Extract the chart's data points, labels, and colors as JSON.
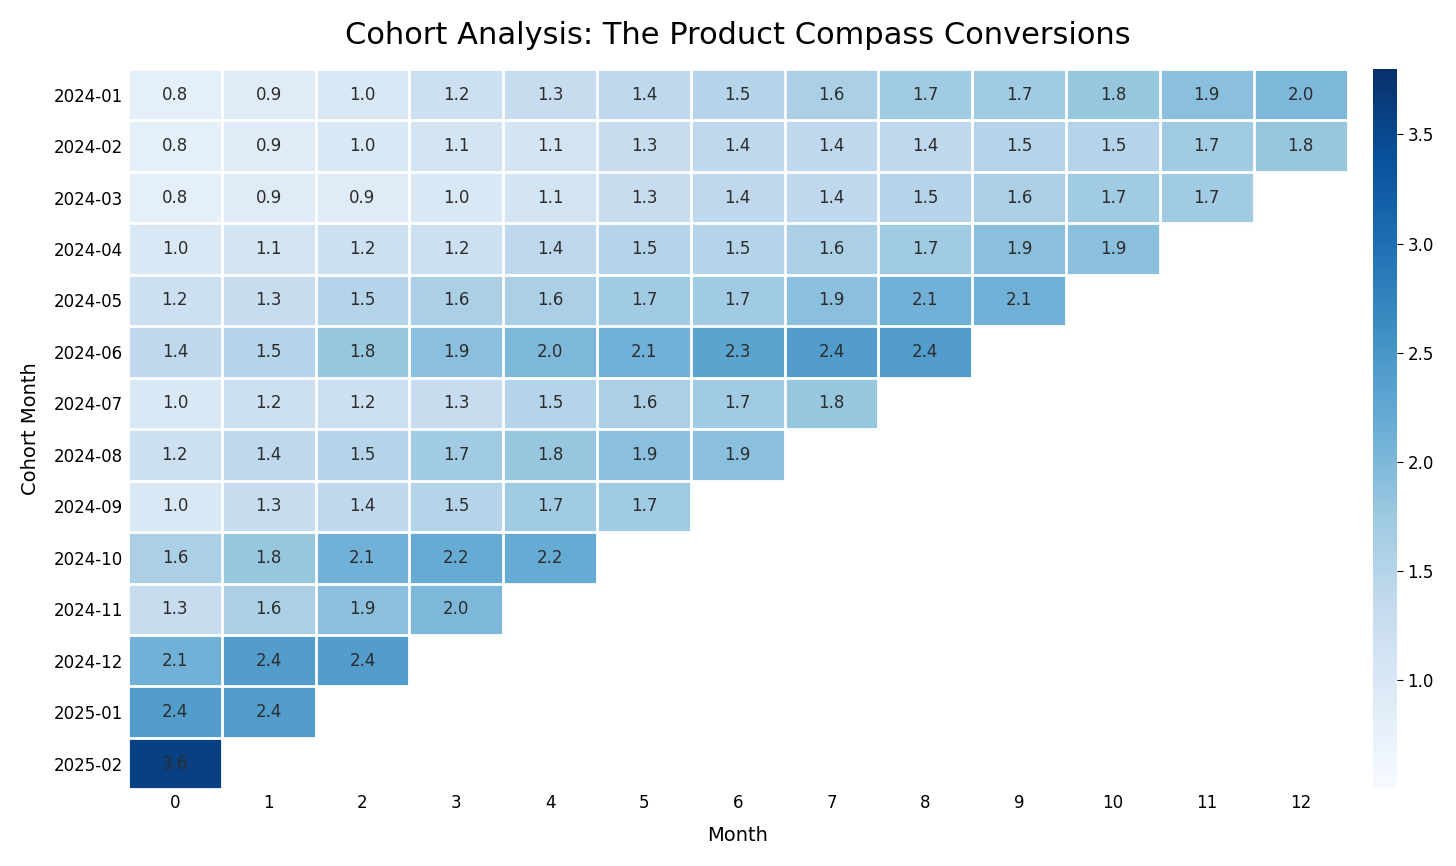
{
  "title": "Cohort Analysis: The Product Compass Conversions",
  "xlabel": "Month",
  "ylabel": "Cohort Month",
  "cohort_labels": [
    "2024-01",
    "2024-02",
    "2024-03",
    "2024-04",
    "2024-05",
    "2024-06",
    "2024-07",
    "2024-08",
    "2024-09",
    "2024-10",
    "2024-11",
    "2024-12",
    "2025-01",
    "2025-02"
  ],
  "month_labels": [
    "0",
    "1",
    "2",
    "3",
    "4",
    "5",
    "6",
    "7",
    "8",
    "9",
    "10",
    "11",
    "12"
  ],
  "data": [
    [
      0.8,
      0.9,
      1.0,
      1.2,
      1.3,
      1.4,
      1.5,
      1.6,
      1.7,
      1.7,
      1.8,
      1.9,
      2.0
    ],
    [
      0.8,
      0.9,
      1.0,
      1.1,
      1.1,
      1.3,
      1.4,
      1.4,
      1.4,
      1.5,
      1.5,
      1.7,
      1.8
    ],
    [
      0.8,
      0.9,
      0.9,
      1.0,
      1.1,
      1.3,
      1.4,
      1.4,
      1.5,
      1.6,
      1.7,
      1.7,
      null
    ],
    [
      1.0,
      1.1,
      1.2,
      1.2,
      1.4,
      1.5,
      1.5,
      1.6,
      1.7,
      1.9,
      1.9,
      null,
      null
    ],
    [
      1.2,
      1.3,
      1.5,
      1.6,
      1.6,
      1.7,
      1.7,
      1.9,
      2.1,
      2.1,
      null,
      null,
      null
    ],
    [
      1.4,
      1.5,
      1.8,
      1.9,
      2.0,
      2.1,
      2.3,
      2.4,
      2.4,
      null,
      null,
      null,
      null
    ],
    [
      1.0,
      1.2,
      1.2,
      1.3,
      1.5,
      1.6,
      1.7,
      1.8,
      null,
      null,
      null,
      null,
      null
    ],
    [
      1.2,
      1.4,
      1.5,
      1.7,
      1.8,
      1.9,
      1.9,
      null,
      null,
      null,
      null,
      null,
      null
    ],
    [
      1.0,
      1.3,
      1.4,
      1.5,
      1.7,
      1.7,
      null,
      null,
      null,
      null,
      null,
      null,
      null
    ],
    [
      1.6,
      1.8,
      2.1,
      2.2,
      2.2,
      null,
      null,
      null,
      null,
      null,
      null,
      null,
      null
    ],
    [
      1.3,
      1.6,
      1.9,
      2.0,
      null,
      null,
      null,
      null,
      null,
      null,
      null,
      null,
      null
    ],
    [
      2.1,
      2.4,
      2.4,
      null,
      null,
      null,
      null,
      null,
      null,
      null,
      null,
      null,
      null
    ],
    [
      2.4,
      2.4,
      null,
      null,
      null,
      null,
      null,
      null,
      null,
      null,
      null,
      null,
      null
    ],
    [
      3.6,
      null,
      null,
      null,
      null,
      null,
      null,
      null,
      null,
      null,
      null,
      null,
      null
    ]
  ],
  "vmin": 0.5,
  "vmax": 3.8,
  "cmap": "Blues",
  "colorbar_ticks": [
    1.0,
    1.5,
    2.0,
    2.5,
    3.0,
    3.5
  ],
  "colorbar_ticklabels": [
    "1.0",
    "1.5",
    "2.0",
    "2.5",
    "3.0",
    "3.5"
  ],
  "colorbar_vmin": 0.7,
  "colorbar_vmax": 3.8,
  "figsize": [
    14.56,
    8.66
  ],
  "dpi": 100,
  "title_fontsize": 22,
  "label_fontsize": 14,
  "tick_fontsize": 12,
  "cell_fontsize": 12,
  "background_color": "#ffffff"
}
